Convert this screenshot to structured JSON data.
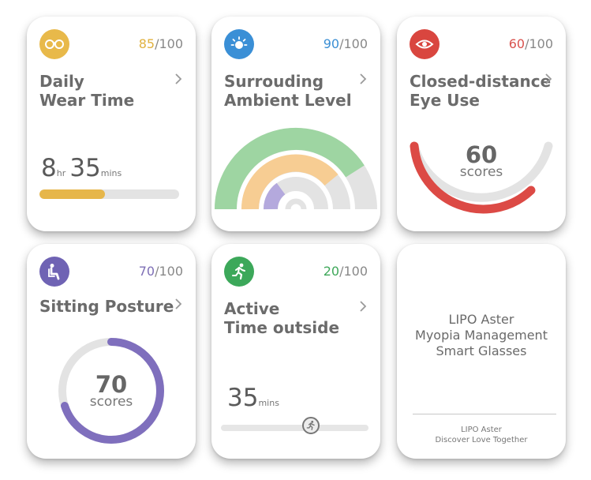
{
  "cards": {
    "wear": {
      "score_value": "85",
      "score_max": "/100",
      "score_color": "#e0b13f",
      "title_line1": "Daily",
      "title_line2": "Wear Time",
      "hours": "8",
      "hours_unit": "hr",
      "minutes": "35",
      "minutes_unit": "mins",
      "progress_fraction": 0.47
    },
    "ambient": {
      "score_value": "90",
      "score_max": "/100",
      "score_color": "#3b8fd4",
      "title_line1": "Surrouding",
      "title_line2": "Ambient Level"
    },
    "eye": {
      "score_value": "60",
      "score_max": "/100",
      "score_color": "#d9534f",
      "title_line1": "Closed-distance",
      "title_line2": "Eye Use",
      "gauge_value": "60",
      "gauge_label": "scores"
    },
    "posture": {
      "score_value": "70",
      "score_max": "/100",
      "score_color": "#7e6fb6",
      "title_line1": "Sitting Posture",
      "gauge_value": "70",
      "gauge_label": "scores"
    },
    "active": {
      "score_value": "20",
      "score_max": "/100",
      "score_color": "#3fa85a",
      "title_line1": "Active",
      "title_line2": "Time outside",
      "minutes": "35",
      "minutes_unit": "mins",
      "slider_fraction": 0.61
    },
    "brand": {
      "line1": "LIPO Aster",
      "line2": "Myopia Management",
      "line3": "Smart Glasses",
      "footer1": "LIPO Aster",
      "footer2": "Discover Love Together"
    }
  },
  "colors": {
    "wear_icon": "#e8b94a",
    "ambient_icon": "#3a8fd6",
    "eye_icon": "#d9463f",
    "posture_icon": "#6f63b4",
    "active_icon": "#3ca85a",
    "gauge_green": "#9ed5a2",
    "gauge_orange": "#f7cd93",
    "gauge_purple": "#b4a9dd",
    "gauge_track": "#e3e3e3",
    "eye_arc": "#dc4a45",
    "posture_arc": "#7f6fbd"
  },
  "icons": {
    "wear": "glasses-icon",
    "ambient": "sun-icon",
    "eye": "eye-icon",
    "posture": "seated-person-icon",
    "active": "running-person-icon"
  }
}
